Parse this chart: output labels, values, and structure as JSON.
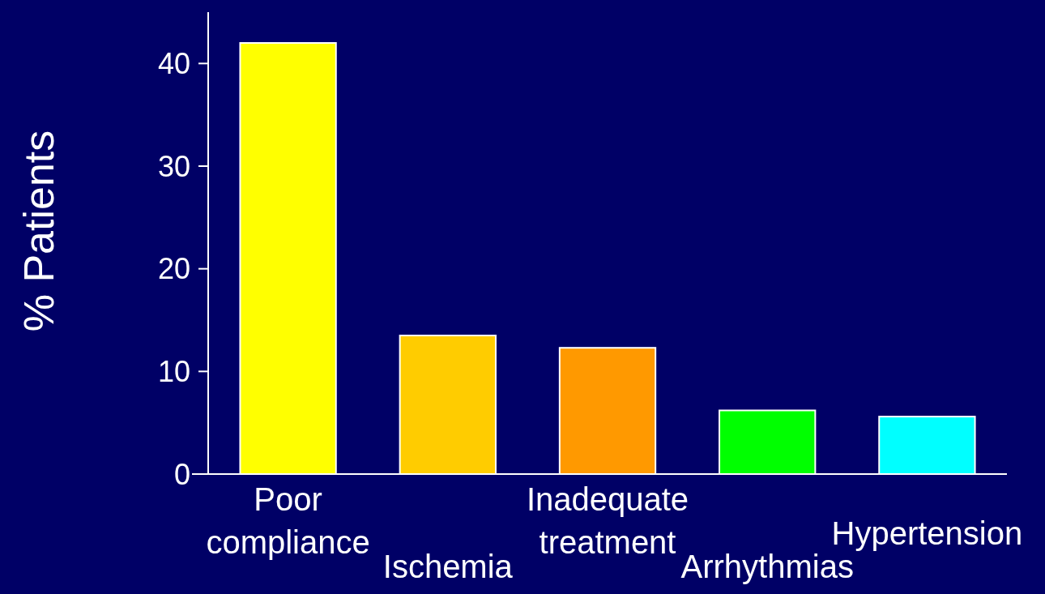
{
  "chart_data": {
    "type": "bar",
    "ylabel": "% Patients",
    "categories": [
      "Poor compliance",
      "Ischemia",
      "Inadequate treatment",
      "Arrhythmias",
      "Hypertension"
    ],
    "values": [
      42,
      13.5,
      12.3,
      6.2,
      5.6
    ],
    "colors": [
      "#ffff00",
      "#ffcc00",
      "#ff9900",
      "#00ff00",
      "#00ffff"
    ],
    "ylim": [
      0,
      45
    ],
    "yticks": [
      0,
      10,
      20,
      30,
      40
    ],
    "grid": false
  }
}
